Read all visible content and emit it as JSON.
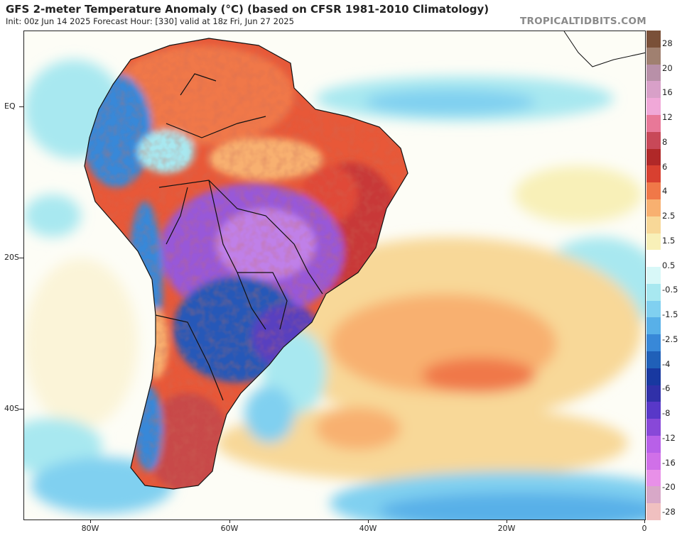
{
  "header": {
    "title": "GFS 2-meter Temperature Anomaly (°C) (based on CFSR 1981-2010 Climatology)",
    "subtitle": "Init: 00z Jun 14 2025   Forecast Hour: [330]   valid at 18z Fri, Jun 27 2025",
    "credit": "TROPICALTIDBITS.COM"
  },
  "axes": {
    "lat_labels": [
      "EQ",
      "20S",
      "40S"
    ],
    "lon_labels": [
      "80W",
      "60W",
      "40W",
      "20W",
      "0"
    ]
  },
  "colorbar": {
    "labels": [
      "28",
      "20",
      "16",
      "12",
      "8",
      "6",
      "4",
      "2.5",
      "1.5",
      "0.5",
      "-0.5",
      "-1.5",
      "-2.5",
      "-4",
      "-6",
      "-8",
      "-12",
      "-16",
      "-20",
      "-28"
    ],
    "colors": [
      "#7a5038",
      "#a08070",
      "#b890a8",
      "#d8a0c8",
      "#f0a8d8",
      "#e87898",
      "#c84858",
      "#b02828",
      "#d84030",
      "#f07848",
      "#f8b070",
      "#f8d898",
      "#f8f0b8",
      "#ffffff",
      "#d8f8f8",
      "#a8e8f0",
      "#80d0f0",
      "#58b0e8",
      "#3888d8",
      "#2060b8",
      "#1838a0",
      "#3030a8",
      "#5838c8",
      "#8848d8",
      "#b860e8",
      "#d070e8",
      "#e890e8",
      "#d8a8c8",
      "#f0c0c0"
    ]
  },
  "map": {
    "type": "temperature anomaly map",
    "region": "South America and South Atlantic",
    "features": [
      {
        "name": "central-south-america-cold",
        "anomaly": "-8 to -16"
      },
      {
        "name": "eastern-brazil-warm",
        "anomaly": "4 to 8"
      },
      {
        "name": "patagonia-warm",
        "anomaly": "4 to 8"
      },
      {
        "name": "south-atlantic-warm",
        "anomaly": "0.5 to 2.5"
      },
      {
        "name": "southern-ocean-cold",
        "anomaly": "-1.5 to -4"
      }
    ]
  }
}
